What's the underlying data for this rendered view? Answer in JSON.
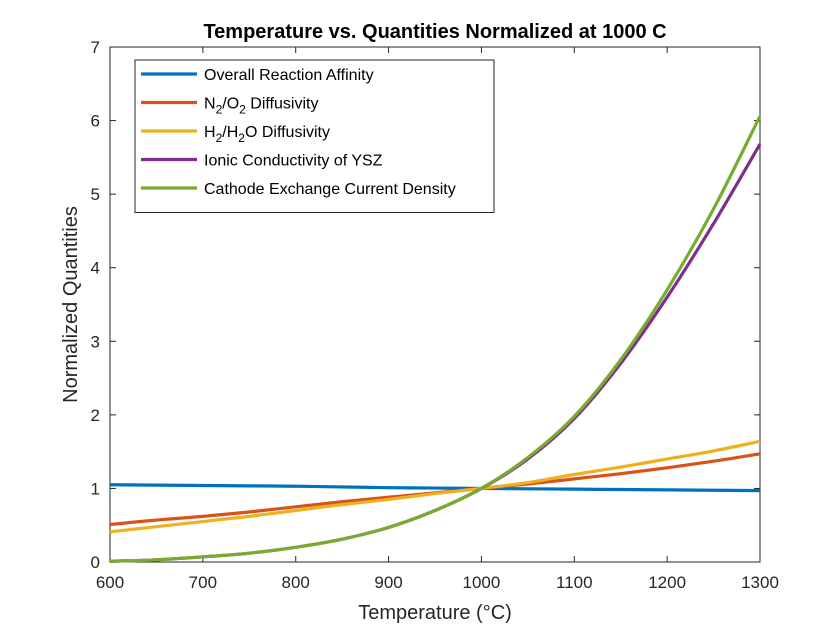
{
  "chart_data": {
    "type": "line",
    "title": "Temperature vs. Quantities Normalized at 1000 C",
    "xlabel": "Temperature (°C)",
    "ylabel": "Normalized Quantities",
    "xlim": [
      600,
      1300
    ],
    "ylim": [
      0,
      7
    ],
    "x_ticks": [
      600,
      700,
      800,
      900,
      1000,
      1100,
      1200,
      1300
    ],
    "y_ticks": [
      0,
      1,
      2,
      3,
      4,
      5,
      6,
      7
    ],
    "grid": false,
    "legend_position": "top-left",
    "x": [
      600,
      650,
      700,
      750,
      800,
      850,
      900,
      950,
      1000,
      1050,
      1100,
      1150,
      1200,
      1250,
      1300
    ],
    "series": [
      {
        "name": "Overall Reaction Affinity",
        "legend_parts": [
          "Overall Reaction Affinity"
        ],
        "color": "#0072BD",
        "values": [
          1.05,
          1.045,
          1.04,
          1.035,
          1.03,
          1.02,
          1.01,
          1.005,
          1.0,
          0.995,
          0.99,
          0.985,
          0.98,
          0.975,
          0.97
        ]
      },
      {
        "name": "N2/O2 Diffusivity",
        "legend_parts": [
          "N",
          "2",
          "/O",
          "2",
          " Diffusivity"
        ],
        "color": "#D95319",
        "values": [
          0.51,
          0.57,
          0.62,
          0.68,
          0.75,
          0.82,
          0.88,
          0.94,
          1.0,
          1.06,
          1.13,
          1.2,
          1.28,
          1.37,
          1.47
        ]
      },
      {
        "name": "H2/H2O Diffusivity",
        "legend_parts": [
          "H",
          "2",
          "/H",
          "2",
          "O Diffusivity"
        ],
        "color": "#EDB120",
        "values": [
          0.41,
          0.48,
          0.55,
          0.62,
          0.7,
          0.78,
          0.85,
          0.93,
          1.0,
          1.08,
          1.19,
          1.29,
          1.4,
          1.51,
          1.64
        ]
      },
      {
        "name": "Ionic Conductivity of YSZ",
        "legend_parts": [
          "Ionic Conductivity of YSZ"
        ],
        "color": "#7E2F8E",
        "values": [
          0.01,
          0.03,
          0.07,
          0.12,
          0.2,
          0.31,
          0.47,
          0.7,
          1.0,
          1.4,
          1.95,
          2.7,
          3.6,
          4.6,
          5.68
        ]
      },
      {
        "name": "Cathode Exchange Current Density",
        "legend_parts": [
          "Cathode Exchange Current Density"
        ],
        "color": "#77AC30",
        "values": [
          0.01,
          0.03,
          0.07,
          0.12,
          0.2,
          0.31,
          0.47,
          0.7,
          1.0,
          1.42,
          1.98,
          2.75,
          3.7,
          4.8,
          6.06
        ]
      }
    ]
  }
}
